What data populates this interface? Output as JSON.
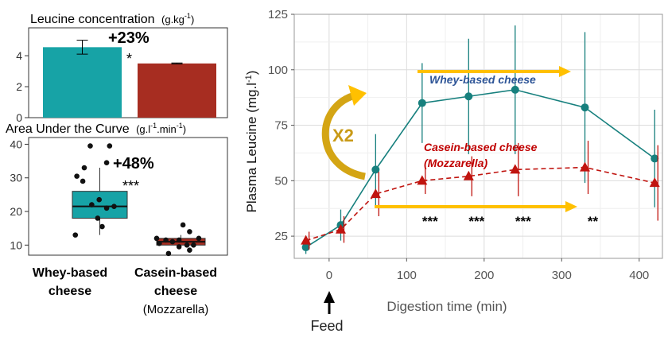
{
  "chart_data": [
    {
      "type": "bar",
      "title": "Leucine concentration",
      "title_unit": "(g.kg",
      "title_unit_sup": "-1",
      "title_unit_close": ")",
      "categories": [
        "Whey-based cheese",
        "Casein-based cheese (Mozzarella)"
      ],
      "values": [
        4.55,
        3.5
      ],
      "error": [
        0.45,
        0.03
      ],
      "yticks": [
        0,
        2,
        4
      ],
      "ylim": [
        0,
        5.8
      ],
      "annotation_pct": "+23%",
      "annotation_sig": "*"
    },
    {
      "type": "box",
      "title": "Area Under the Curve",
      "title_unit": "(g.l",
      "title_unit_sup1": "-1",
      "title_unit_mid": ".min",
      "title_unit_sup2": "-1",
      "title_unit_close": ")",
      "yticks": [
        10,
        20,
        30,
        40
      ],
      "ylim": [
        7,
        42
      ],
      "categories_line1": [
        "Whey-based",
        "Casein-based"
      ],
      "categories_line2": [
        "cheese",
        "cheese"
      ],
      "categories_line3": [
        "",
        "(Mozzarella)"
      ],
      "boxes": [
        {
          "name": "Whey-based cheese",
          "q1": 18,
          "median": 21.5,
          "q3": 26,
          "wlow": 13,
          "whigh": 33,
          "points": [
            [
              0.47,
              39.5
            ],
            [
              0.6,
              39.5
            ],
            [
              0.58,
              34.5
            ],
            [
              0.43,
              33
            ],
            [
              0.38,
              30.5
            ],
            [
              0.42,
              29
            ],
            [
              0.53,
              23.5
            ],
            [
              0.48,
              22
            ],
            [
              0.63,
              21.5
            ],
            [
              0.58,
              21
            ],
            [
              0.52,
              18
            ],
            [
              0.55,
              15.5
            ],
            [
              0.37,
              13
            ]
          ]
        },
        {
          "name": "Casein-based cheese",
          "q1": 10,
          "median": 11,
          "q3": 12,
          "wlow": 9,
          "whigh": 13,
          "points": [
            [
              0.35,
              12
            ],
            [
              0.42,
              11.5
            ],
            [
              0.55,
              16
            ],
            [
              0.6,
              14
            ],
            [
              0.52,
              11.5
            ],
            [
              0.47,
              11
            ],
            [
              0.37,
              10.5
            ],
            [
              0.58,
              10
            ],
            [
              0.63,
              10
            ],
            [
              0.52,
              9.5
            ],
            [
              0.67,
              12
            ],
            [
              0.44,
              7.5
            ],
            [
              0.6,
              8.5
            ]
          ]
        }
      ],
      "annotation_pct": "+48%",
      "annotation_sig": "***"
    },
    {
      "type": "line",
      "ylabel": "Plasma Leucine (mg.l",
      "ylabel_sup": "-1",
      "ylabel_close": ")",
      "xlabel": "Digestion time (min)",
      "xlim": [
        -45,
        430
      ],
      "ylim": [
        15,
        125
      ],
      "xticks": [
        0,
        100,
        200,
        300,
        400
      ],
      "yticks": [
        25,
        50,
        75,
        100,
        125
      ],
      "grid": true,
      "series": [
        {
          "name": "Whey-based cheese",
          "color": "#17807e",
          "dash": false,
          "marker": "circle",
          "x": [
            -30,
            15,
            60,
            120,
            180,
            240,
            330,
            420
          ],
          "y": [
            20,
            30,
            55,
            85,
            88,
            91,
            83,
            60
          ],
          "err": [
            3,
            7,
            16,
            18,
            26,
            29,
            34,
            22
          ]
        },
        {
          "name": "Casein-based cheese (Mozzarella)",
          "color": "#c0140f",
          "dash": true,
          "marker": "triangle",
          "x": [
            -30,
            15,
            60,
            120,
            180,
            240,
            330,
            420
          ],
          "y": [
            23,
            28,
            44,
            50,
            52,
            55,
            56,
            49
          ],
          "err": [
            4,
            6,
            10,
            6,
            9,
            12,
            12,
            17
          ]
        }
      ],
      "labels": {
        "whey": "Whey-based cheese",
        "casein1": "Casein-based cheese",
        "casein2": "(Mozzarella)",
        "fold": "X2",
        "feed": "Feed"
      },
      "sig_marks": [
        {
          "x": 120,
          "text": "***"
        },
        {
          "x": 180,
          "text": "***"
        },
        {
          "x": 240,
          "text": "***"
        },
        {
          "x": 330,
          "text": "**"
        }
      ],
      "colors": {
        "whey": "#17a3a6",
        "casein": "#a72d21",
        "arrow": "#ffc000",
        "whey_label": "#2e5597",
        "casein_label": "#c00000"
      }
    }
  ]
}
